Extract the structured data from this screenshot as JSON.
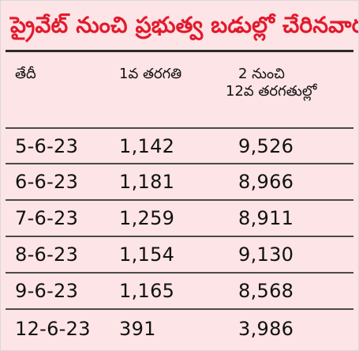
{
  "title": "ప్రైవేట్ నుంచి ప్రభుత్వ బడుల్లో చేరినవారు",
  "table": {
    "headers": {
      "date": "తేదీ",
      "class1": "1వ తరగతి",
      "class2to12_line1": "2 నుంచి",
      "class2to12_line2": "12వ తరగతుల్లో"
    },
    "rows": [
      {
        "date": "5-6-23",
        "class1": "1,142",
        "class2to12": "9,526"
      },
      {
        "date": "6-6-23",
        "class1": "1,181",
        "class2to12": "8,966"
      },
      {
        "date": "7-6-23",
        "class1": "1,259",
        "class2to12": "8,911"
      },
      {
        "date": "8-6-23",
        "class1": "1,154",
        "class2to12": "9,130"
      },
      {
        "date": "9-6-23",
        "class1": "1,165",
        "class2to12": "8,568"
      },
      {
        "date": "12-6-23",
        "class1": "391",
        "class2to12": "3,986"
      }
    ]
  }
}
